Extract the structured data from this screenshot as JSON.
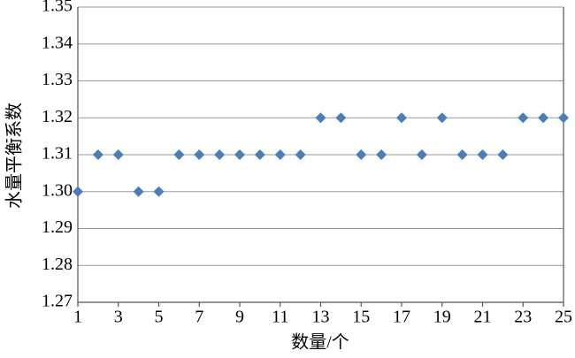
{
  "chart_data": {
    "type": "scatter",
    "x_label": "数量/个",
    "y_label": "水量平衡系数",
    "x": [
      1,
      2,
      3,
      4,
      5,
      6,
      7,
      8,
      9,
      10,
      11,
      12,
      13,
      14,
      15,
      16,
      17,
      18,
      19,
      20,
      21,
      22,
      23,
      24,
      25
    ],
    "series": [
      {
        "color": "#4a7ebb",
        "values": [
          1.3,
          1.31,
          1.31,
          1.3,
          1.3,
          1.31,
          1.31,
          1.31,
          1.31,
          1.31,
          1.31,
          1.31,
          1.32,
          1.32,
          1.31,
          1.31,
          1.32,
          1.31,
          1.32,
          1.31,
          1.31,
          1.31,
          1.32,
          1.32,
          1.32
        ]
      }
    ],
    "xlim": [
      1,
      25
    ],
    "xticks": [
      1,
      3,
      5,
      7,
      9,
      11,
      13,
      15,
      17,
      19,
      21,
      23,
      25
    ],
    "ylim": [
      1.27,
      1.35
    ],
    "yticks": [
      1.27,
      1.28,
      1.29,
      {
        "value": 1.3,
        "label": "1.30"
      },
      1.31,
      1.32,
      1.33,
      1.34,
      1.35
    ],
    "grid": true
  }
}
